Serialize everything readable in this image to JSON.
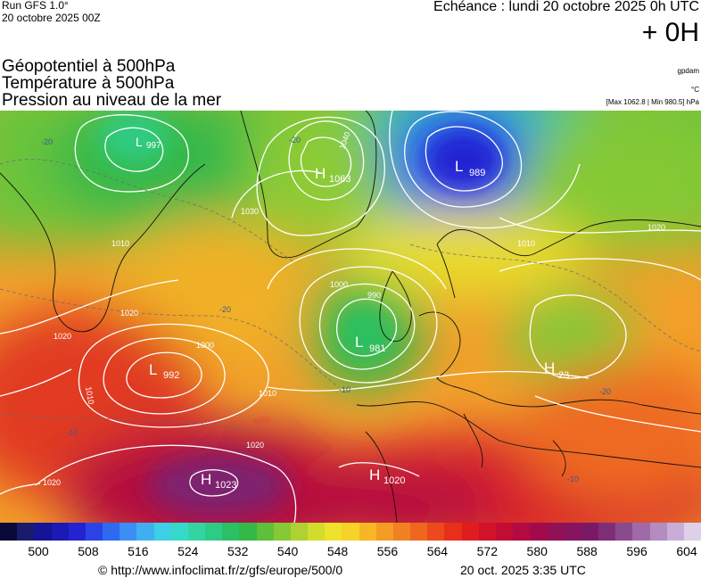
{
  "header": {
    "run": "Run GFS 1.0°",
    "run_date": "20 octobre 2025 00Z",
    "echeance": "Echéance : lundi 20 octobre 2025 0h UTC",
    "hour": "+ 0H"
  },
  "layers": [
    {
      "label": "Géopotentiel à 500hPa",
      "unit": "gpdam"
    },
    {
      "label": "Température à 500hPa",
      "unit": "°C"
    },
    {
      "label": "Pression au niveau de la mer",
      "unit": "[Max 1062.8 | Min 980.5] hPa"
    }
  ],
  "pressure_centers": [
    {
      "type": "H",
      "value": "1063"
    },
    {
      "type": "L",
      "value": "989"
    },
    {
      "type": "L",
      "value": "981"
    },
    {
      "type": "L",
      "value": "992"
    },
    {
      "type": "H",
      "value": "1023"
    },
    {
      "type": "H",
      "value": "1020"
    },
    {
      "type": "H",
      "value": "23"
    },
    {
      "type": "L",
      "value": "997"
    }
  ],
  "isobar_labels": [
    "1040",
    "1030",
    "1010",
    "1020",
    "1000",
    "990",
    "1010",
    "1020",
    "1010",
    "1000",
    "1020",
    "1020",
    "1010",
    "1020"
  ],
  "temperature_labels": [
    "-20",
    "-20",
    "-20",
    "-10",
    "-10",
    "-10",
    "-20"
  ],
  "color_scale": {
    "colors": [
      "#0a0a3a",
      "#1b1b6e",
      "#141496",
      "#1a1ab4",
      "#2323d2",
      "#2b43e6",
      "#2f69f0",
      "#3a8ef4",
      "#3eb0f2",
      "#3ccfe6",
      "#36d9c8",
      "#33d4a4",
      "#2dcc84",
      "#2bc064",
      "#34b848",
      "#5dbf3a",
      "#85c934",
      "#add232",
      "#d2dc2c",
      "#eee22a",
      "#f7d228",
      "#f7b626",
      "#f49c24",
      "#f18122",
      "#ef661f",
      "#ec4a1c",
      "#e72f1a",
      "#e01c1e",
      "#d21228",
      "#c20c34",
      "#b30a40",
      "#a20a4c",
      "#921056",
      "#86145e",
      "#7a1a66",
      "#7e2e78",
      "#8a4a8e",
      "#a06aa8",
      "#b48cc0",
      "#c8aed6",
      "#ddd0e8"
    ],
    "ticks": [
      "500",
      "508",
      "516",
      "524",
      "532",
      "540",
      "548",
      "556",
      "564",
      "572",
      "580",
      "588",
      "596",
      "604"
    ]
  },
  "footer": {
    "copyright": "© http://www.infoclimat.fr/z/gfs/europe/500/0",
    "timestamp": "20 oct. 2025  3:35 UTC"
  }
}
